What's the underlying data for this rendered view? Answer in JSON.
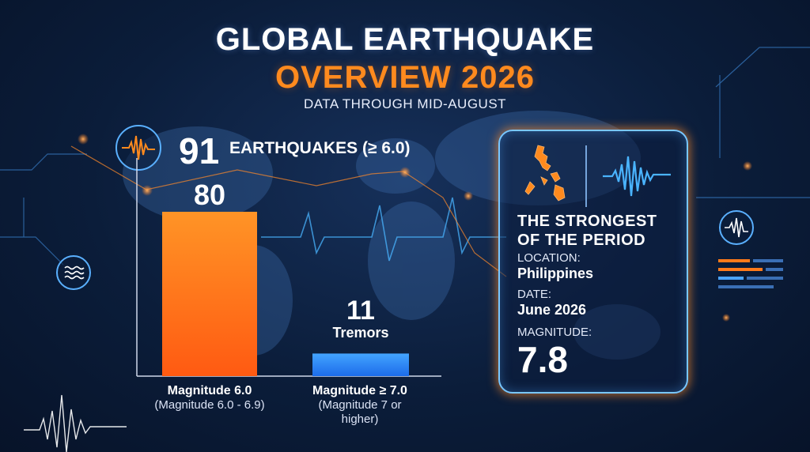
{
  "title": {
    "line1": "GLOBAL EARTHQUAKE",
    "line2": "OVERVIEW 2026",
    "subtitle": "DATA THROUGH MID-AUGUST"
  },
  "total": {
    "number": "91",
    "label": "EARTHQUAKES (≥ 6.0)"
  },
  "chart_data": {
    "type": "bar",
    "title": "",
    "xlabel": "",
    "ylabel": "",
    "categories": [
      "Magnitude 6.0",
      "Magnitude ≥ 7.0"
    ],
    "category_notes": [
      "(Magnitude 6.0 - 6.9)",
      "(Magnitude 7 or higher)"
    ],
    "values": [
      80,
      11
    ],
    "value_labels": [
      "80",
      "11"
    ],
    "extra_labels": [
      "",
      "Tremors"
    ],
    "ylim": [
      0,
      80
    ],
    "grid": false,
    "legend": "none",
    "colors": [
      "#ff7a1a",
      "#2f8fff"
    ]
  },
  "strongest": {
    "heading_line1": "THE STRONGEST",
    "heading_line2": "OF THE PERIOD",
    "location_label": "LOCATION:",
    "location_value": "Philippines",
    "date_label": "DATE:",
    "date_value": "June 2026",
    "magnitude_label": "MAGNITUDE:",
    "magnitude_value": "7.8"
  },
  "icons": [
    "seismograph-icon",
    "waves-icon",
    "philippines-map-icon",
    "seismic-wave-icon",
    "data-bars-icon"
  ],
  "colors": {
    "accent_orange": "#ff8a1e",
    "accent_blue": "#2f8fff",
    "background": "#0b1d3a"
  }
}
